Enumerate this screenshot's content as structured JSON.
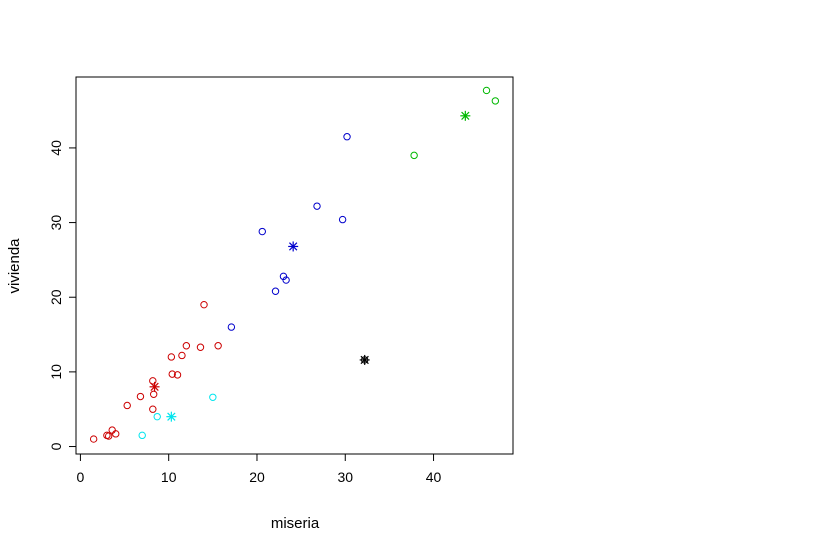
{
  "chart_data": {
    "type": "scatter",
    "title": "",
    "xlabel": "miseria",
    "ylabel": "vivienda",
    "xlim": [
      -0.5,
      49
    ],
    "ylim": [
      -1,
      49.5
    ],
    "x_ticks": [
      0,
      10,
      20,
      30,
      40
    ],
    "y_ticks": [
      0,
      10,
      20,
      30,
      40
    ],
    "grid": false,
    "legend": "none",
    "series": [
      {
        "color": "#cc0000",
        "marker": "circle",
        "points": [
          [
            1.5,
            1.0
          ],
          [
            3.0,
            1.5
          ],
          [
            3.2,
            1.4
          ],
          [
            3.6,
            2.2
          ],
          [
            4.0,
            1.7
          ],
          [
            5.3,
            5.5
          ],
          [
            6.8,
            6.7
          ],
          [
            8.2,
            8.8
          ],
          [
            8.3,
            7.0
          ],
          [
            8.2,
            5.0
          ],
          [
            10.3,
            12.0
          ],
          [
            10.4,
            9.7
          ],
          [
            11.0,
            9.6
          ],
          [
            11.5,
            12.2
          ],
          [
            12.0,
            13.5
          ],
          [
            13.6,
            13.3
          ],
          [
            14.0,
            19.0
          ],
          [
            15.6,
            13.5
          ]
        ],
        "center": [
          8.4,
          8.0
        ]
      },
      {
        "color": "#00e5ee",
        "marker": "circle",
        "points": [
          [
            7.0,
            1.5
          ],
          [
            8.7,
            4.0
          ],
          [
            15.0,
            6.6
          ]
        ],
        "center": [
          10.3,
          4.0
        ]
      },
      {
        "color": "#0000cc",
        "marker": "circle",
        "points": [
          [
            17.1,
            16.0
          ],
          [
            20.6,
            28.8
          ],
          [
            22.1,
            20.8
          ],
          [
            23.0,
            22.8
          ],
          [
            23.3,
            22.3
          ],
          [
            26.8,
            32.2
          ],
          [
            29.7,
            30.4
          ],
          [
            30.2,
            41.5
          ]
        ],
        "center": [
          24.1,
          26.8
        ]
      },
      {
        "color": "#00b800",
        "marker": "circle",
        "points": [
          [
            37.8,
            39.0
          ],
          [
            46.0,
            47.7
          ],
          [
            47.0,
            46.3
          ]
        ],
        "center": [
          43.6,
          44.3
        ]
      },
      {
        "color": "#000000",
        "marker": "circle",
        "points": [
          [
            32.2,
            11.6
          ]
        ],
        "center": [
          32.2,
          11.6
        ]
      }
    ]
  }
}
